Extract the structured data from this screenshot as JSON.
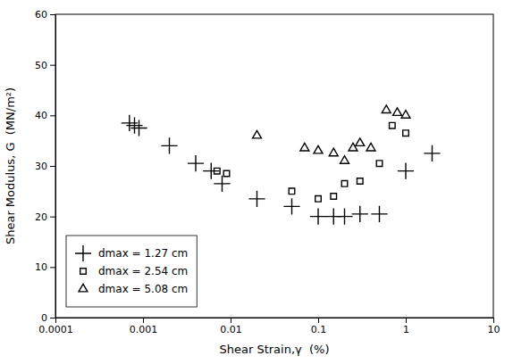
{
  "chart_data": {
    "type": "scatter",
    "xlabel": "Shear Strain,γ  (%)",
    "ylabel": "Shear Modulus, G  (MN/m²)",
    "log": "x",
    "xlim": [
      0.0001,
      10
    ],
    "ylim": [
      0,
      60
    ],
    "xticks": [
      0.0001,
      0.001,
      0.01,
      0.1,
      1,
      10
    ],
    "yticks": [
      0,
      10,
      20,
      30,
      40,
      50,
      60
    ],
    "grid": false,
    "legend": "lower left",
    "series": [
      {
        "name": "dmax = 1.27 cm",
        "color": "#000000",
        "marker": "plus",
        "x": [
          0.0007,
          0.0008,
          0.0009,
          0.002,
          0.004,
          0.006,
          0.008,
          0.02,
          0.05,
          0.1,
          0.15,
          0.2,
          0.3,
          0.5,
          1.0,
          2.0
        ],
        "values": [
          38.5,
          38.0,
          37.5,
          34.0,
          30.5,
          29.0,
          26.5,
          23.5,
          22.0,
          20.0,
          20.0,
          20.0,
          20.5,
          20.5,
          29.0,
          32.5
        ]
      },
      {
        "name": "dmax = 2.54 cm",
        "color": "#000000",
        "marker": "square",
        "x": [
          0.007,
          0.009,
          0.05,
          0.1,
          0.15,
          0.2,
          0.3,
          0.5,
          0.7,
          1.0
        ],
        "values": [
          29.0,
          28.5,
          25.0,
          23.5,
          24.0,
          26.5,
          27.0,
          30.5,
          38.0,
          36.5
        ]
      },
      {
        "name": "dmax = 5.08 cm",
        "color": "#000000",
        "marker": "triangle",
        "x": [
          0.02,
          0.07,
          0.1,
          0.15,
          0.2,
          0.25,
          0.3,
          0.4,
          0.6,
          0.8,
          1.0
        ],
        "values": [
          36.0,
          33.5,
          33.0,
          32.5,
          31.0,
          33.5,
          34.5,
          33.5,
          41.0,
          40.5,
          40.0
        ]
      }
    ]
  }
}
